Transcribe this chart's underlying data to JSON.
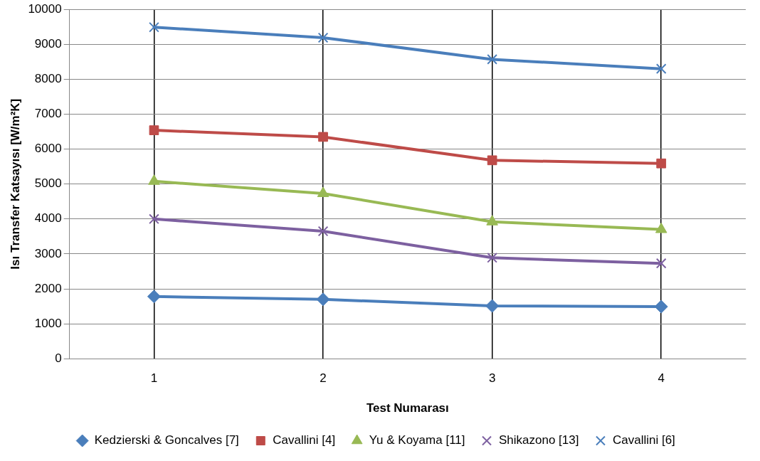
{
  "chart_data": {
    "type": "line",
    "xlabel": "Test Numarası",
    "ylabel": "Isı Transfer Katsayısı [W/m²K]",
    "categories": [
      "1",
      "2",
      "3",
      "4"
    ],
    "ylim": [
      0,
      10000
    ],
    "yticks": [
      0,
      1000,
      2000,
      3000,
      4000,
      5000,
      6000,
      7000,
      8000,
      9000,
      10000
    ],
    "grid": true,
    "legend": "bottom",
    "line_style": "solid",
    "series": [
      {
        "name": "Kedzierski & Goncalves [7]",
        "color": "#4a7ebb",
        "marker": "diamond",
        "values": [
          1780,
          1700,
          1510,
          1490
        ]
      },
      {
        "name": "Cavallini [4]",
        "color": "#be4b48",
        "marker": "square",
        "values": [
          6540,
          6350,
          5680,
          5590
        ]
      },
      {
        "name": "Yu & Koyama [11]",
        "color": "#98b954",
        "marker": "triangle",
        "values": [
          5080,
          4730,
          3920,
          3700
        ]
      },
      {
        "name": "Shikazono [13]",
        "color": "#7d60a0",
        "marker": "cross",
        "values": [
          4000,
          3650,
          2890,
          2730
        ]
      },
      {
        "name": "Cavallini [6]",
        "color": "#4a7ebb",
        "marker": "cross",
        "values": [
          9490,
          9190,
          8570,
          8300
        ]
      }
    ]
  }
}
